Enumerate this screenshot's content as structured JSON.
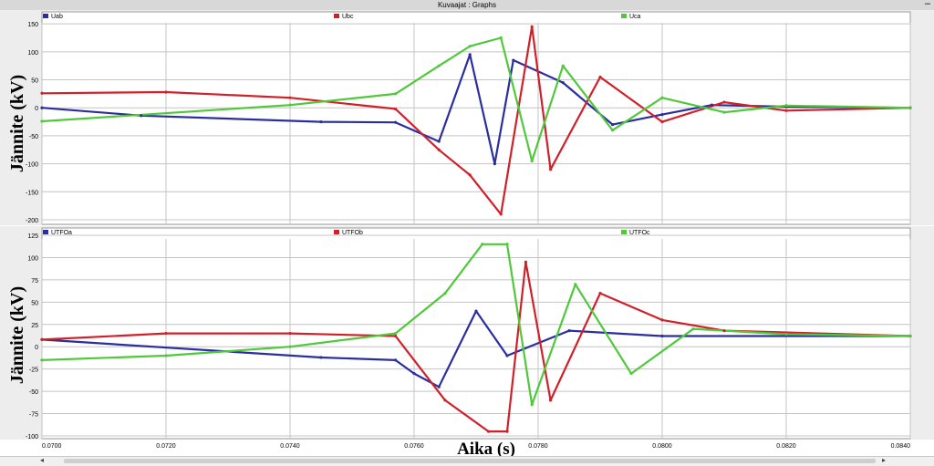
{
  "window": {
    "title": "Kuvaajat : Graphs"
  },
  "colors": {
    "phase_a": "#2a2e9e",
    "phase_b": "#d0202a",
    "phase_c": "#4fc93a",
    "grid": "#c4c4c4",
    "panel_bg": "#ffffff"
  },
  "icons": [
    "minimize-icon",
    "scroll-left-icon",
    "scroll-right-icon"
  ],
  "axes": {
    "xlabel": "Aika (s)",
    "ylabel": "Jännite (kV)",
    "x_ticks": [
      "0.0700",
      "0.0720",
      "0.0740",
      "0.0760",
      "0.0780",
      "0.0800",
      "0.0820",
      "0.0840"
    ]
  },
  "chart_data": [
    {
      "type": "line",
      "title": "",
      "xlabel": "Aika (s)",
      "ylabel": "Jännite (kV)",
      "xlim": [
        0.07,
        0.084
      ],
      "ylim": [
        -200,
        160
      ],
      "y_ticks": [
        150,
        100,
        50,
        0,
        -50,
        -100,
        -150,
        -200
      ],
      "grid": true,
      "legend": "top",
      "series": [
        {
          "name": "Uab",
          "color": "#2a2e9e",
          "x": [
            0.07,
            0.0716,
            0.0745,
            0.0757,
            0.0764,
            0.0769,
            0.0773,
            0.0776,
            0.0784,
            0.0792,
            0.08,
            0.0808,
            0.082,
            0.084
          ],
          "y": [
            0,
            -14,
            -25,
            -26,
            -60,
            95,
            -100,
            85,
            45,
            -30,
            -12,
            5,
            2,
            0
          ]
        },
        {
          "name": "Ubc",
          "color": "#d0202a",
          "x": [
            0.07,
            0.072,
            0.074,
            0.0757,
            0.0764,
            0.0769,
            0.0774,
            0.0779,
            0.0782,
            0.079,
            0.08,
            0.081,
            0.082,
            0.084
          ],
          "y": [
            26,
            28,
            18,
            -2,
            -75,
            -120,
            -190,
            145,
            -110,
            55,
            -25,
            10,
            -5,
            0
          ]
        },
        {
          "name": "Uca",
          "color": "#4fc93a",
          "x": [
            0.07,
            0.074,
            0.0757,
            0.0764,
            0.0769,
            0.0774,
            0.0779,
            0.0784,
            0.0792,
            0.08,
            0.081,
            0.082,
            0.084
          ],
          "y": [
            -24,
            5,
            25,
            75,
            110,
            125,
            -95,
            75,
            -40,
            18,
            -8,
            4,
            0
          ]
        }
      ]
    },
    {
      "type": "line",
      "title": "",
      "xlabel": "Aika (s)",
      "ylabel": "Jännite (kV)",
      "xlim": [
        0.07,
        0.084
      ],
      "ylim": [
        -100,
        125
      ],
      "y_ticks": [
        125,
        100,
        75,
        50,
        25,
        0,
        -25,
        -50,
        -75,
        -100
      ],
      "grid": true,
      "legend": "top",
      "series": [
        {
          "name": "UTFOa",
          "color": "#2a2e9e",
          "x": [
            0.07,
            0.0745,
            0.0757,
            0.076,
            0.0764,
            0.077,
            0.0775,
            0.0785,
            0.08,
            0.084
          ],
          "y": [
            8,
            -12,
            -15,
            -30,
            -45,
            40,
            -10,
            18,
            12,
            12
          ]
        },
        {
          "name": "UTFOb",
          "color": "#d0202a",
          "x": [
            0.07,
            0.072,
            0.074,
            0.0757,
            0.0765,
            0.0772,
            0.0775,
            0.0778,
            0.0782,
            0.079,
            0.08,
            0.081,
            0.084
          ],
          "y": [
            8,
            15,
            15,
            12,
            -60,
            -95,
            -95,
            95,
            -60,
            60,
            30,
            18,
            12
          ]
        },
        {
          "name": "UTFOc",
          "color": "#4fc93a",
          "x": [
            0.07,
            0.072,
            0.074,
            0.0757,
            0.0765,
            0.0771,
            0.0775,
            0.0779,
            0.0786,
            0.0795,
            0.0805,
            0.082,
            0.084
          ],
          "y": [
            -15,
            -10,
            0,
            15,
            60,
            115,
            115,
            -65,
            70,
            -30,
            20,
            14,
            12
          ]
        }
      ]
    }
  ]
}
